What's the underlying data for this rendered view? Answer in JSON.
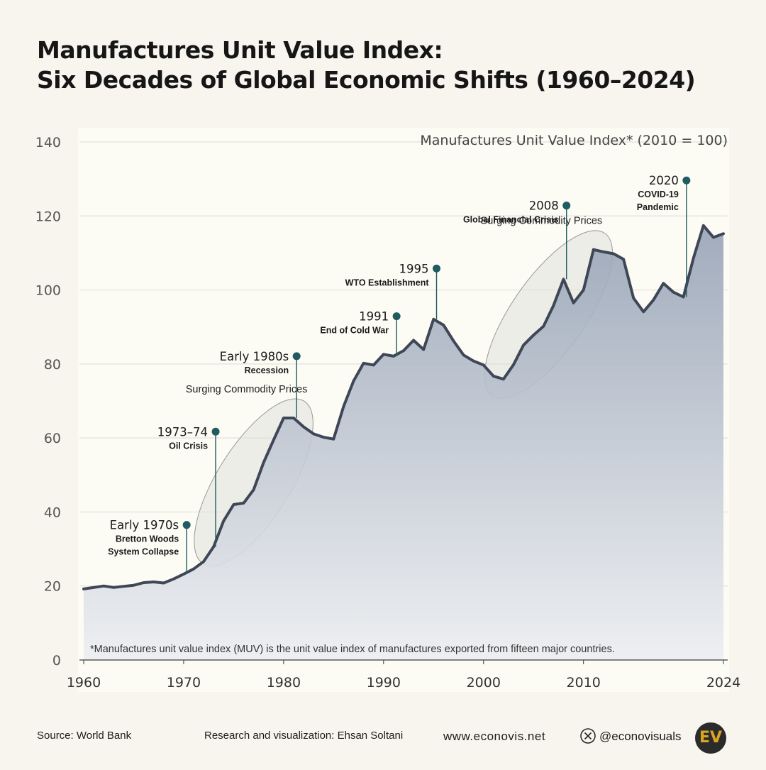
{
  "title_line1": "Manufactures Unit Value Index:",
  "title_line2": "Six Decades of Global Economic Shifts (1960–2024)",
  "chart_data": {
    "type": "area",
    "title": "Manufactures Unit Value Index: Six Decades of Global Economic Shifts (1960–2024)",
    "series_label": "Manufactures Unit Value Index* (2010 = 100)",
    "xlabel": "",
    "ylabel": "",
    "xlim": [
      1960,
      2024
    ],
    "ylim": [
      0,
      140
    ],
    "y_ticks": [
      0,
      20,
      40,
      60,
      80,
      100,
      120,
      140
    ],
    "x_ticks": [
      1960,
      1970,
      1980,
      1990,
      2000,
      2010,
      2024
    ],
    "x": [
      1960,
      1961,
      1962,
      1963,
      1964,
      1965,
      1966,
      1967,
      1968,
      1969,
      1970,
      1971,
      1972,
      1973,
      1974,
      1975,
      1976,
      1977,
      1978,
      1979,
      1980,
      1981,
      1982,
      1983,
      1984,
      1985,
      1986,
      1987,
      1988,
      1989,
      1990,
      1991,
      1992,
      1993,
      1994,
      1995,
      1996,
      1997,
      1998,
      1999,
      2000,
      2001,
      2002,
      2003,
      2004,
      2005,
      2006,
      2007,
      2008,
      2009,
      2010,
      2011,
      2012,
      2013,
      2014,
      2015,
      2016,
      2017,
      2018,
      2019,
      2020,
      2021,
      2022,
      2023,
      2024
    ],
    "values": [
      19.2,
      19.6,
      20,
      19.6,
      19.9,
      20.2,
      20.9,
      21.1,
      20.8,
      21.9,
      23.2,
      24.6,
      26.6,
      30.6,
      37.6,
      42,
      42.4,
      46,
      53.4,
      59.5,
      65.4,
      65.4,
      63,
      61.1,
      60.2,
      59.7,
      68.5,
      75.4,
      80.2,
      79.7,
      82.6,
      82.1,
      83.6,
      86.4,
      83.9,
      92.1,
      90.5,
      86.2,
      82.4,
      80.8,
      79.7,
      76.7,
      75.9,
      79.8,
      85.1,
      87.8,
      90.2,
      95.8,
      102.9,
      96.5,
      100,
      110.9,
      110.3,
      109.8,
      108.3,
      97.8,
      94.1,
      97.3,
      101.8,
      99.4,
      98.1,
      108.6,
      117.4,
      114.2,
      115.2
    ],
    "annotations": [
      {
        "id": "early1970s",
        "year": 1970.3,
        "dot_value": 36.5,
        "title": "Early 1970s",
        "subtitle": [
          "Bretton Woods",
          "System Collapse"
        ]
      },
      {
        "id": "oil1973",
        "year": 1973.2,
        "dot_value": 61.7,
        "title": "1973–74",
        "subtitle": [
          "Oil Crisis"
        ]
      },
      {
        "id": "early1980s",
        "year": 1981.3,
        "dot_value": 82.1,
        "title": "Early 1980s",
        "subtitle": [
          "Recession"
        ]
      },
      {
        "id": "y1991",
        "year": 1991.3,
        "dot_value": 92.9,
        "title": "1991",
        "subtitle": [
          "End of Cold War"
        ]
      },
      {
        "id": "y1995",
        "year": 1995.3,
        "dot_value": 105.8,
        "title": "1995",
        "subtitle": [
          "WTO Establishment"
        ]
      },
      {
        "id": "y2008",
        "year": 2008.3,
        "dot_value": 122.8,
        "title": "2008",
        "subtitle": [
          "Global Financial Crisis"
        ]
      },
      {
        "id": "y2020",
        "year": 2020.3,
        "dot_value": 129.6,
        "title": "2020",
        "subtitle": [
          "COVID-19",
          "Pandemic"
        ]
      }
    ],
    "highlights": [
      {
        "label": "Surging Commodity Prices",
        "from_year": 1973,
        "to_year": 1981
      },
      {
        "label": "Surging Commodity Prices",
        "from_year": 2002,
        "to_year": 2011
      }
    ],
    "footnote": "*Manufactures unit value index (MUV) is the unit value index of manufactures exported from fifteen major countries."
  },
  "footer": {
    "source": "Source: World Bank",
    "credit": "Research and visualization: Ehsan Soltani",
    "website": "www.econovis.net",
    "handle": "@econovisuals",
    "logo_text": "EV"
  },
  "colors": {
    "background": "#f7f5ee",
    "plot_background": "#fcfbf4",
    "line": "#3f4756",
    "area_top": "#97a3b6",
    "area_bottom": "#eceef1",
    "annotation": "#1f5b61",
    "grid": "#e3e1da",
    "text": "#1c1c1c"
  }
}
